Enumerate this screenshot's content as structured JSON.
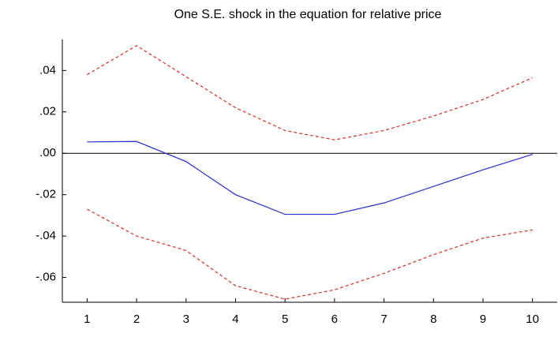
{
  "chart_data": {
    "type": "line",
    "title": "One S.E. shock in the equation for relative price",
    "x": [
      1,
      2,
      3,
      4,
      5,
      6,
      7,
      8,
      9,
      10
    ],
    "series": [
      {
        "color": "#2b2bd0",
        "style": "solid",
        "values": [
          0.0055,
          0.0057,
          -0.004,
          -0.02,
          -0.0295,
          -0.0295,
          -0.024,
          -0.016,
          -0.008,
          -0.0005
        ]
      },
      {
        "color": "#d03030",
        "style": "dashed",
        "values": [
          0.038,
          0.052,
          0.037,
          0.022,
          0.011,
          0.0065,
          0.011,
          0.018,
          0.026,
          0.0365
        ]
      },
      {
        "color": "#d03030",
        "style": "dashed",
        "values": [
          -0.027,
          -0.04,
          -0.047,
          -0.064,
          -0.0705,
          -0.066,
          -0.058,
          -0.049,
          -0.041,
          -0.037
        ]
      }
    ],
    "xlim": [
      0.5,
      10.5
    ],
    "xticks": [
      1,
      2,
      3,
      4,
      5,
      6,
      7,
      8,
      9,
      10
    ],
    "ylim": [
      -0.072,
      0.055
    ],
    "yticks": [
      {
        "value": 0.04,
        "label": ".04"
      },
      {
        "value": 0.02,
        "label": ".02"
      },
      {
        "value": 0,
        "label": ".00"
      },
      {
        "value": -0.02,
        "label": "-.02"
      },
      {
        "value": -0.04,
        "label": "-.04"
      },
      {
        "value": -0.06,
        "label": "-.06"
      }
    ],
    "zero_line": true
  }
}
